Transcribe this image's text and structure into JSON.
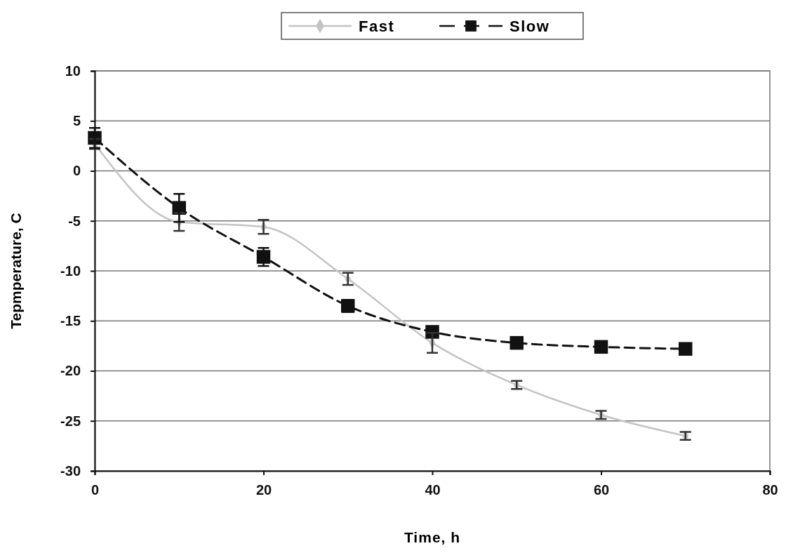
{
  "chart_data": {
    "type": "line",
    "xlabel": "Time, h",
    "ylabel": "Tepmperature, C",
    "x": [
      0,
      10,
      20,
      30,
      40,
      50,
      60,
      70
    ],
    "xlim": [
      0,
      80
    ],
    "xticks": [
      0,
      20,
      40,
      60,
      80
    ],
    "ylim": [
      -30,
      10
    ],
    "yticks": [
      -30,
      -25,
      -20,
      -15,
      -10,
      -5,
      0,
      5,
      10
    ],
    "grid": "y",
    "legend": "top",
    "series": [
      {
        "name": "Fast",
        "color": "#c4c4c4",
        "marker": "diamond",
        "line_style": "solid",
        "values": [
          2.7,
          -5.1,
          -5.6,
          -10.8,
          -17.2,
          -21.4,
          -24.4,
          -26.5
        ],
        "errors": [
          0.5,
          0.9,
          0.7,
          0.6,
          1.0,
          0.4,
          0.4,
          0.4
        ]
      },
      {
        "name": "Slow",
        "color": "#111111",
        "marker": "square",
        "line_style": "dashed",
        "values": [
          3.3,
          -3.7,
          -8.6,
          -13.5,
          -16.1,
          -17.2,
          -17.6,
          -17.8
        ],
        "errors": [
          1.0,
          1.4,
          0.9,
          0.6,
          null,
          null,
          null,
          null
        ]
      }
    ]
  }
}
